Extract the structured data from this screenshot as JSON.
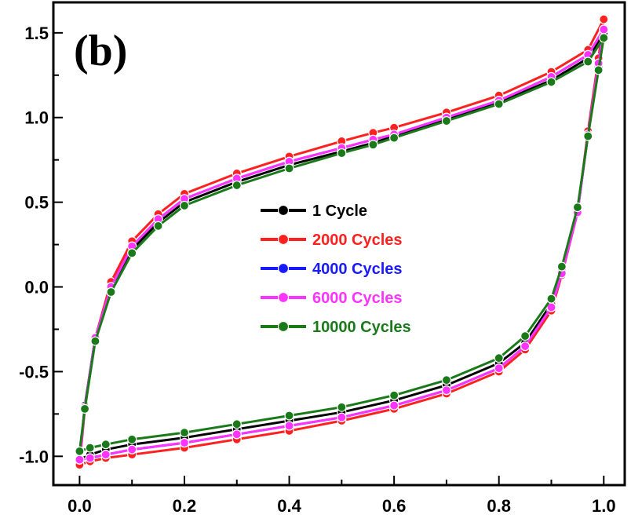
{
  "chart_data": {
    "type": "line",
    "panel_label": "(b)",
    "title": "",
    "xlabel": "",
    "ylabel": "",
    "xlim": [
      -0.05,
      1.04
    ],
    "ylim": [
      -1.17,
      1.68
    ],
    "xticks": [
      0.0,
      0.2,
      0.4,
      0.6,
      0.8,
      1.0
    ],
    "xtick_labels": [
      "0.0",
      "0.2",
      "0.4",
      "0.6",
      "0.8",
      "1.0"
    ],
    "yticks": [
      -1.0,
      -0.5,
      0.0,
      0.5,
      1.0,
      1.5
    ],
    "ytick_labels": [
      "-1.0",
      "-0.5",
      "0.0",
      "0.5",
      "1.0",
      "1.5"
    ],
    "grid": false,
    "legend_position": "center",
    "series": [
      {
        "name": "1 Cycle",
        "color": "#000000",
        "label_color": "#000000",
        "x": [
          0.0,
          0.01,
          0.03,
          0.06,
          0.1,
          0.15,
          0.2,
          0.3,
          0.4,
          0.5,
          0.56,
          0.6,
          0.7,
          0.8,
          0.9,
          0.97,
          1.0,
          0.99,
          0.97,
          0.95,
          0.92,
          0.9,
          0.85,
          0.8,
          0.7,
          0.6,
          0.5,
          0.4,
          0.3,
          0.2,
          0.1,
          0.05,
          0.02,
          0.0
        ],
        "y": [
          -1.02,
          -0.7,
          -0.3,
          0.0,
          0.22,
          0.38,
          0.5,
          0.62,
          0.72,
          0.8,
          0.85,
          0.89,
          0.99,
          1.09,
          1.22,
          1.35,
          1.5,
          1.3,
          0.9,
          0.45,
          0.1,
          -0.1,
          -0.33,
          -0.45,
          -0.58,
          -0.67,
          -0.74,
          -0.79,
          -0.84,
          -0.89,
          -0.93,
          -0.96,
          -0.99,
          -1.02
        ]
      },
      {
        "name": "2000 Cycles",
        "color": "#ff2020",
        "label_color": "#ff2020",
        "x": [
          0.0,
          0.01,
          0.03,
          0.06,
          0.1,
          0.15,
          0.2,
          0.3,
          0.4,
          0.5,
          0.56,
          0.6,
          0.7,
          0.8,
          0.9,
          0.97,
          1.0,
          0.99,
          0.97,
          0.95,
          0.92,
          0.9,
          0.85,
          0.8,
          0.7,
          0.6,
          0.5,
          0.4,
          0.3,
          0.2,
          0.1,
          0.05,
          0.02,
          0.0
        ],
        "y": [
          -1.05,
          -0.72,
          -0.3,
          0.03,
          0.27,
          0.43,
          0.55,
          0.67,
          0.77,
          0.86,
          0.91,
          0.94,
          1.03,
          1.13,
          1.27,
          1.4,
          1.58,
          1.35,
          0.92,
          0.44,
          0.07,
          -0.14,
          -0.37,
          -0.5,
          -0.63,
          -0.72,
          -0.79,
          -0.85,
          -0.9,
          -0.95,
          -0.99,
          -1.01,
          -1.03,
          -1.05
        ]
      },
      {
        "name": "4000 Cycles",
        "color": "#1a1aff",
        "label_color": "#1a1aff",
        "x": [
          0.0,
          0.01,
          0.03,
          0.06,
          0.1,
          0.15,
          0.2,
          0.3,
          0.4,
          0.5,
          0.56,
          0.6,
          0.7,
          0.8,
          0.9,
          0.97,
          1.0,
          0.99,
          0.97,
          0.95,
          0.92,
          0.9,
          0.85,
          0.8,
          0.7,
          0.6,
          0.5,
          0.4,
          0.3,
          0.2,
          0.1,
          0.05,
          0.02,
          0.0
        ],
        "y": [
          -1.02,
          -0.71,
          -0.3,
          0.0,
          0.24,
          0.4,
          0.52,
          0.64,
          0.74,
          0.82,
          0.87,
          0.9,
          1.0,
          1.1,
          1.24,
          1.37,
          1.52,
          1.32,
          0.9,
          0.44,
          0.08,
          -0.12,
          -0.35,
          -0.48,
          -0.61,
          -0.7,
          -0.77,
          -0.82,
          -0.87,
          -0.92,
          -0.96,
          -0.99,
          -1.01,
          -1.02
        ]
      },
      {
        "name": "6000 Cycles",
        "color": "#ff33ff",
        "label_color": "#ff33ff",
        "x": [
          0.0,
          0.01,
          0.03,
          0.06,
          0.1,
          0.15,
          0.2,
          0.3,
          0.4,
          0.5,
          0.56,
          0.6,
          0.7,
          0.8,
          0.9,
          0.97,
          1.0,
          0.99,
          0.97,
          0.95,
          0.92,
          0.9,
          0.85,
          0.8,
          0.7,
          0.6,
          0.5,
          0.4,
          0.3,
          0.2,
          0.1,
          0.05,
          0.02,
          0.0
        ],
        "y": [
          -1.02,
          -0.71,
          -0.3,
          0.0,
          0.24,
          0.4,
          0.52,
          0.64,
          0.74,
          0.82,
          0.87,
          0.9,
          1.0,
          1.1,
          1.24,
          1.37,
          1.52,
          1.32,
          0.9,
          0.44,
          0.08,
          -0.12,
          -0.35,
          -0.48,
          -0.61,
          -0.7,
          -0.77,
          -0.82,
          -0.87,
          -0.92,
          -0.96,
          -0.99,
          -1.01,
          -1.02
        ]
      },
      {
        "name": "10000 Cycles",
        "color": "#1a7a1a",
        "label_color": "#1a7a1a",
        "x": [
          0.0,
          0.01,
          0.03,
          0.06,
          0.1,
          0.15,
          0.2,
          0.3,
          0.4,
          0.5,
          0.56,
          0.6,
          0.7,
          0.8,
          0.9,
          0.97,
          1.0,
          0.99,
          0.97,
          0.95,
          0.92,
          0.9,
          0.85,
          0.8,
          0.7,
          0.6,
          0.5,
          0.4,
          0.3,
          0.2,
          0.1,
          0.05,
          0.02,
          0.0
        ],
        "y": [
          -0.97,
          -0.72,
          -0.32,
          -0.03,
          0.2,
          0.36,
          0.48,
          0.6,
          0.7,
          0.79,
          0.84,
          0.88,
          0.98,
          1.08,
          1.21,
          1.33,
          1.47,
          1.28,
          0.89,
          0.47,
          0.12,
          -0.07,
          -0.29,
          -0.42,
          -0.55,
          -0.64,
          -0.71,
          -0.76,
          -0.81,
          -0.86,
          -0.9,
          -0.93,
          -0.95,
          -0.97
        ]
      }
    ]
  }
}
